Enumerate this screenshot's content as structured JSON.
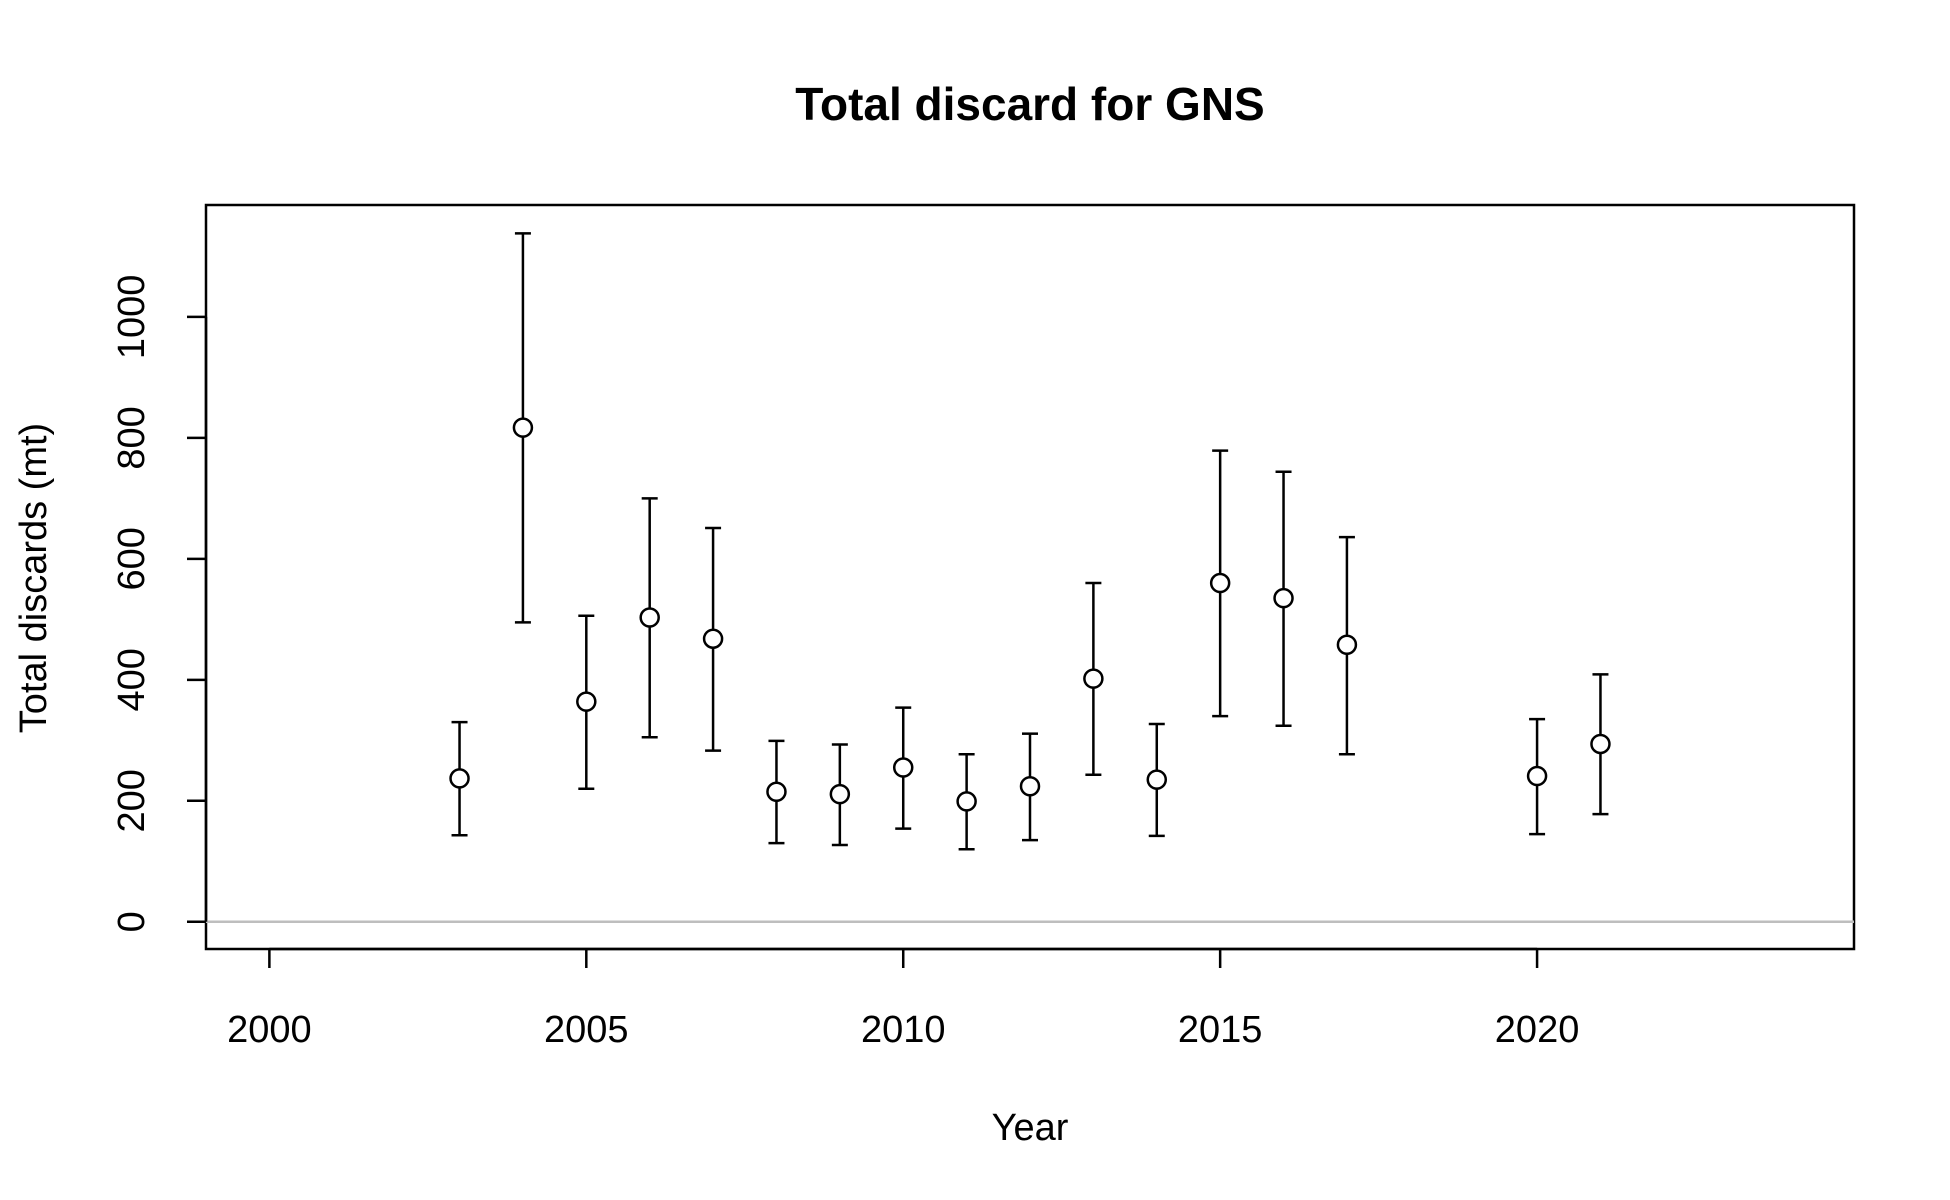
{
  "chart_data": {
    "type": "scatter",
    "title": "Total discard for GNS",
    "xlabel": "Year",
    "ylabel": "Total discards (mt)",
    "xlim": [
      1999,
      2025
    ],
    "ylim": [
      -45,
      1185
    ],
    "xticks": [
      2000,
      2005,
      2010,
      2015,
      2020
    ],
    "yticks": [
      0,
      200,
      400,
      600,
      800,
      1000
    ],
    "grid": false,
    "reference_line": {
      "y": 0,
      "color": "#bebebe"
    },
    "series": [
      {
        "points": [
          {
            "x": 2003,
            "y": 237,
            "lower": 143,
            "upper": 330
          },
          {
            "x": 2004,
            "y": 817,
            "lower": 495,
            "upper": 1138
          },
          {
            "x": 2005,
            "y": 364,
            "lower": 220,
            "upper": 506
          },
          {
            "x": 2006,
            "y": 503,
            "lower": 305,
            "upper": 700
          },
          {
            "x": 2007,
            "y": 468,
            "lower": 283,
            "upper": 651
          },
          {
            "x": 2008,
            "y": 215,
            "lower": 130,
            "upper": 299
          },
          {
            "x": 2009,
            "y": 211,
            "lower": 127,
            "upper": 293
          },
          {
            "x": 2010,
            "y": 255,
            "lower": 154,
            "upper": 354
          },
          {
            "x": 2011,
            "y": 199,
            "lower": 120,
            "upper": 277
          },
          {
            "x": 2012,
            "y": 224,
            "lower": 135,
            "upper": 311
          },
          {
            "x": 2013,
            "y": 402,
            "lower": 243,
            "upper": 560
          },
          {
            "x": 2014,
            "y": 235,
            "lower": 142,
            "upper": 327
          },
          {
            "x": 2015,
            "y": 560,
            "lower": 340,
            "upper": 779
          },
          {
            "x": 2016,
            "y": 535,
            "lower": 324,
            "upper": 744
          },
          {
            "x": 2017,
            "y": 458,
            "lower": 277,
            "upper": 636
          },
          {
            "x": 2020,
            "y": 241,
            "lower": 145,
            "upper": 335
          },
          {
            "x": 2021,
            "y": 294,
            "lower": 178,
            "upper": 409
          }
        ]
      }
    ]
  }
}
